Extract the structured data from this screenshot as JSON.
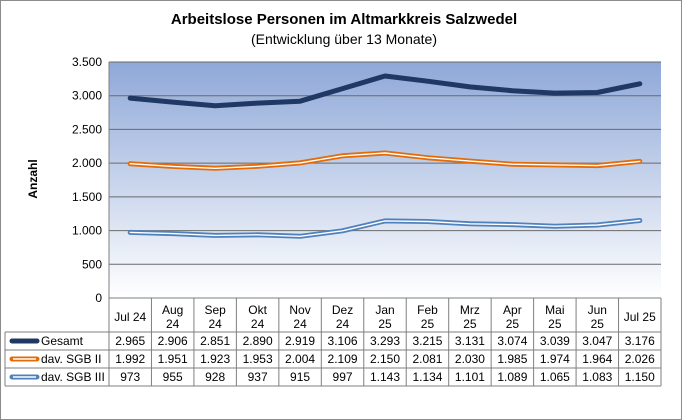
{
  "chart_data": {
    "type": "line",
    "title": "Arbeitslose Personen im Altmarkkreis Salzwedel",
    "subtitle": "(Entwicklung über 13 Monate)",
    "ylabel": "Anzahl",
    "xlabel": "",
    "ylim": [
      0,
      3500
    ],
    "yticks": [
      0,
      500,
      1000,
      1500,
      2000,
      2500,
      3000,
      3500
    ],
    "ytick_labels": [
      "0",
      "500",
      "1.000",
      "1.500",
      "2.000",
      "2.500",
      "3.000",
      "3.500"
    ],
    "grid": true,
    "categories": [
      [
        "Jul 24"
      ],
      [
        "Aug",
        "24"
      ],
      [
        "Sep",
        "24"
      ],
      [
        "Okt",
        "24"
      ],
      [
        "Nov",
        "24"
      ],
      [
        "Dez",
        "24"
      ],
      [
        "Jan",
        "25"
      ],
      [
        "Feb",
        "25"
      ],
      [
        "Mrz",
        "25"
      ],
      [
        "Apr",
        "25"
      ],
      [
        "Mai",
        "25"
      ],
      [
        "Jun",
        "25"
      ],
      [
        "Jul 25"
      ]
    ],
    "series": [
      {
        "name": "Gesamt",
        "color": "#1f3864",
        "style": "thick",
        "values": [
          2965,
          2906,
          2851,
          2890,
          2919,
          3106,
          3293,
          3215,
          3131,
          3074,
          3039,
          3047,
          3176
        ],
        "labels": [
          "2.965",
          "2.906",
          "2.851",
          "2.890",
          "2.919",
          "3.106",
          "3.293",
          "3.215",
          "3.131",
          "3.074",
          "3.039",
          "3.047",
          "3.176"
        ]
      },
      {
        "name": "dav. SGB II",
        "color": "#e36c09",
        "style": "double",
        "values": [
          1992,
          1951,
          1923,
          1953,
          2004,
          2109,
          2150,
          2081,
          2030,
          1985,
          1974,
          1964,
          2026
        ],
        "labels": [
          "1.992",
          "1.951",
          "1.923",
          "1.953",
          "2.004",
          "2.109",
          "2.150",
          "2.081",
          "2.030",
          "1.985",
          "1.974",
          "1.964",
          "2.026"
        ]
      },
      {
        "name": "dav. SGB III",
        "color": "#4f81bd",
        "style": "double",
        "values": [
          973,
          955,
          928,
          937,
          915,
          997,
          1143,
          1134,
          1101,
          1089,
          1065,
          1083,
          1150
        ],
        "labels": [
          "973",
          "955",
          "928",
          "937",
          "915",
          "997",
          "1.143",
          "1.134",
          "1.101",
          "1.089",
          "1.065",
          "1.083",
          "1.150"
        ]
      }
    ]
  }
}
